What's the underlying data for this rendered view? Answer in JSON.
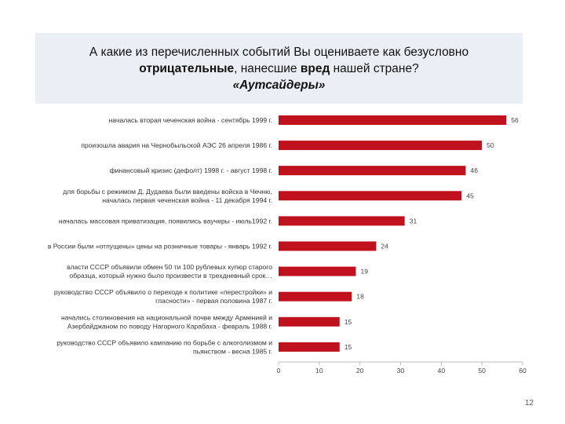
{
  "slide": {
    "title_line1": "А какие из перечисленных событий Вы оцениваете как безусловно",
    "title_bold1": "отрицательные",
    "title_mid": ", нанесшие ",
    "title_bold2": "вред",
    "title_end": " нашей стране?",
    "subtitle": "«Аутсайдеры»",
    "page_number": "12"
  },
  "colors": {
    "bar": "#c0111f",
    "header_bg": "#eaeef5"
  },
  "chart_data": {
    "type": "bar",
    "orientation": "horizontal",
    "categories": [
      [
        "началась вторая чеченская война - сентябрь 1999 г."
      ],
      [
        "произошла авария на Чернобыльской АЭС 26 апреля 1986 г."
      ],
      [
        "финансовый кризис (дефолт) 1998 г. - август 1998 г."
      ],
      [
        "для борьбы с режимом Д. Дудаева были введены войска в Чечню,",
        "началась первая чеченская война - 11 декабря 1994 г."
      ],
      [
        "началась массовая приватизация, появились ваучеры - июль1992 г."
      ],
      [
        "в России были «отпущены» цены на розничные товары - январь 1992 г."
      ],
      [
        "власти СССР объявили обмен 50 ти 100 рублевых купюр старого",
        "образца, который нужно было произвести в трехдневный срок…"
      ],
      [
        "руководство СССР объявило о переходе к политике «перестройки» и",
        "гласности» - первая половина 1987 г."
      ],
      [
        "начались столкновения на национальной почве между Арменией и",
        "Азербайджаном по поводу Нагорного Карабаха - февраль 1988 г."
      ],
      [
        "руководство СССР объявило кампанию по борьбе с алкоголизмом и",
        "пьянством - весна 1985 г."
      ]
    ],
    "values": [
      56,
      50,
      46,
      45,
      31,
      24,
      19,
      18,
      15,
      15
    ],
    "xlim": [
      0,
      60
    ],
    "xticks": [
      0,
      10,
      20,
      30,
      40,
      50,
      60
    ],
    "grid": false,
    "legend": "none"
  }
}
